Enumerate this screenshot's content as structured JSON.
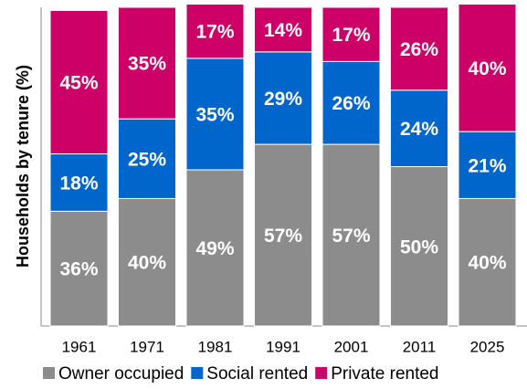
{
  "chart_data": {
    "type": "stacked-bar",
    "y_label": "Households by tenure (%)",
    "categories": [
      "1961",
      "1971",
      "1981",
      "1991",
      "2001",
      "2011",
      "2025"
    ],
    "series": [
      {
        "name": "Owner occupied",
        "color": "#8c8c8c",
        "values": [
          36,
          40,
          49,
          57,
          57,
          50,
          40
        ],
        "value_labels": [
          "36%",
          "40%",
          "49%",
          "57%",
          "57%",
          "50%",
          "40%"
        ]
      },
      {
        "name": "Social rented",
        "color": "#0066cc",
        "values": [
          18,
          25,
          35,
          29,
          26,
          24,
          21
        ],
        "value_labels": [
          "18%",
          "25%",
          "35%",
          "29%",
          "26%",
          "24%",
          "21%"
        ]
      },
      {
        "name": "Private rented",
        "color": "#cc0066",
        "values": [
          45,
          35,
          17,
          14,
          17,
          26,
          40
        ],
        "value_labels": [
          "45%",
          "35%",
          "17%",
          "14%",
          "17%",
          "26%",
          "40%"
        ]
      }
    ],
    "ylim": [
      0,
      100
    ],
    "legend": "bottom"
  }
}
